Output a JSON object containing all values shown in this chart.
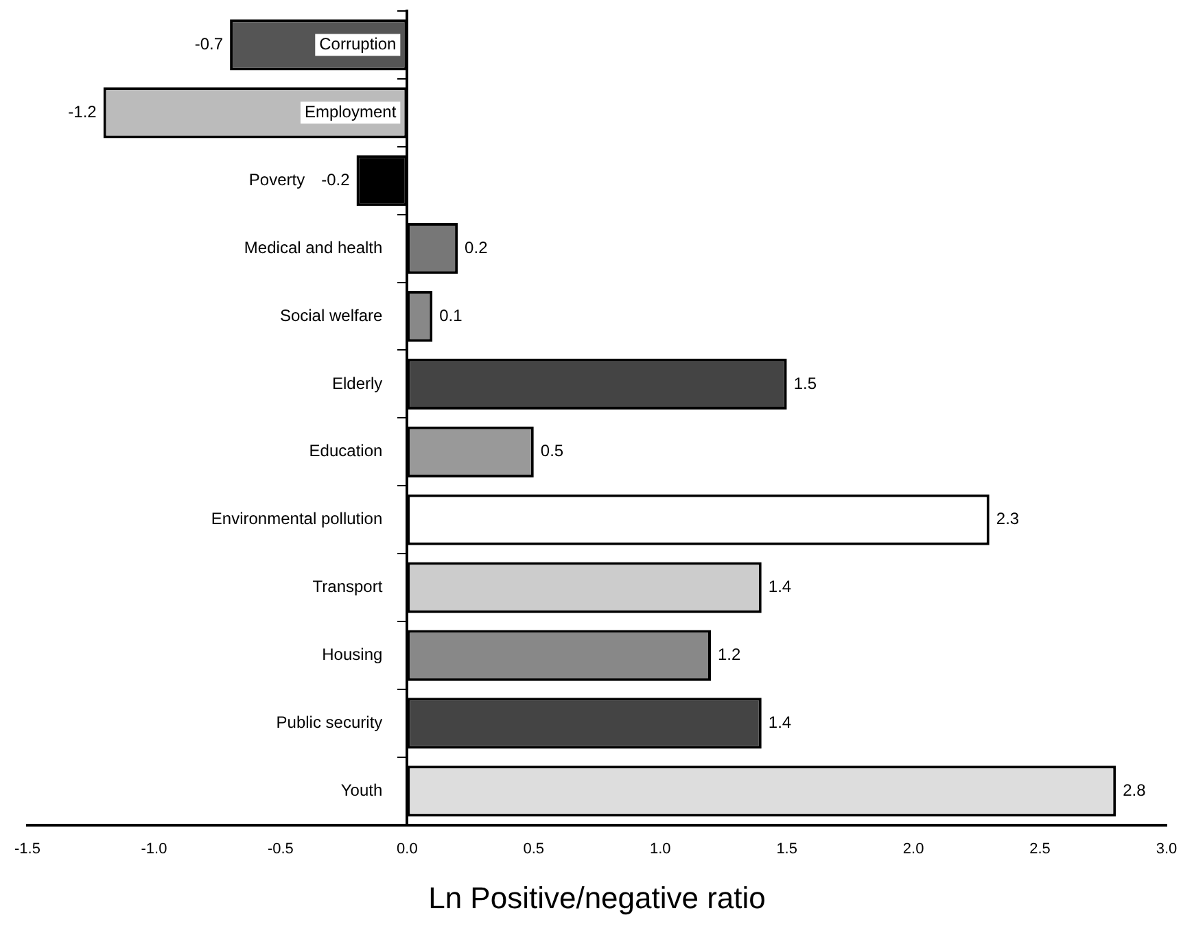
{
  "chart_data": {
    "type": "bar",
    "orientation": "horizontal",
    "xlabel": "Ln Positive/negative ratio",
    "categories": [
      "Corruption",
      "Employment",
      "Poverty",
      "Medical and health",
      "Social welfare",
      "Elderly",
      "Education",
      "Environmental pollution",
      "Transport",
      "Housing",
      "Public security",
      "Youth"
    ],
    "values": [
      -0.7,
      -1.2,
      -0.2,
      0.2,
      0.1,
      1.5,
      0.5,
      2.3,
      1.4,
      1.2,
      1.4,
      2.8
    ],
    "colors": [
      "#555555",
      "#bbbbbb",
      "#000000",
      "#777777",
      "#888888",
      "#444444",
      "#999999",
      "#ffffff",
      "#cccccc",
      "#888888",
      "#444444",
      "#dddddd"
    ],
    "xlim": [
      -1.5,
      3.0
    ],
    "xticks": [
      {
        "value": -1.5,
        "label": "-1.5"
      },
      {
        "value": -1.0,
        "label": "-1.0"
      },
      {
        "value": -0.5,
        "label": "-0.5"
      },
      {
        "value": 0,
        "label": "0.0"
      },
      {
        "value": 0.5,
        "label": "0.5"
      },
      {
        "value": 1.0,
        "label": "1.0"
      },
      {
        "value": 1.5,
        "label": "1.5"
      },
      {
        "value": 2.0,
        "label": "2.0"
      },
      {
        "value": 2.5,
        "label": "2.5"
      },
      {
        "value": 3.0,
        "label": "3.0"
      }
    ],
    "data_labels": true,
    "tick_labels": "x",
    "grid": false,
    "legend": false
  }
}
